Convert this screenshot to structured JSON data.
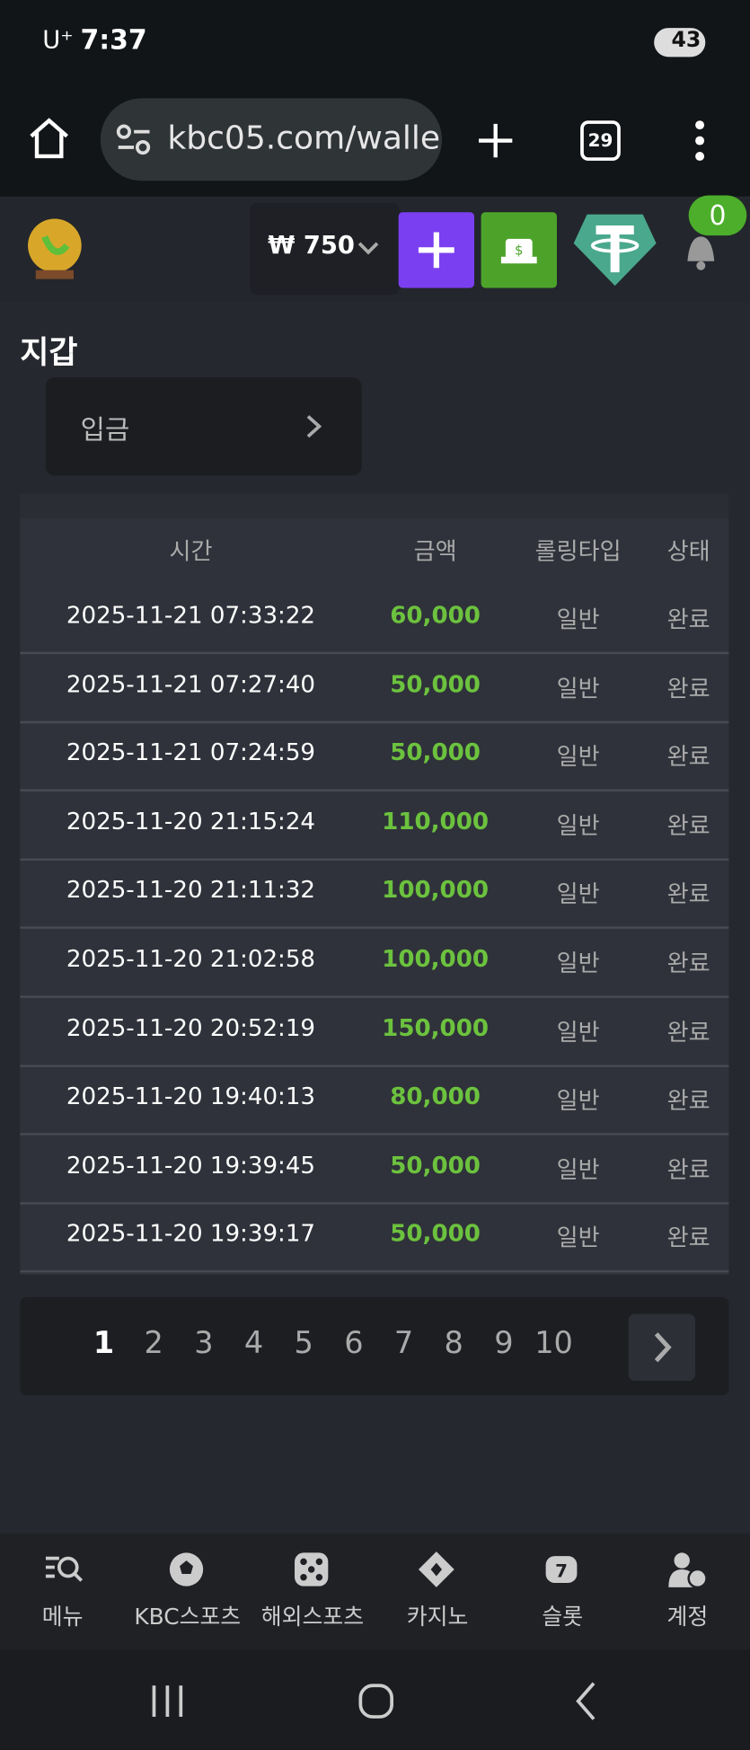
{
  "status_bar": {
    "carrier": "U⁺",
    "time": "7:37",
    "battery": "43"
  },
  "browser": {
    "url": "kbc05.com/walle",
    "tabs": "29"
  },
  "header": {
    "balance": "₩ 750",
    "notifications": "0"
  },
  "page": {
    "title": "지갑",
    "deposit_button": "입금"
  },
  "table": {
    "headers": [
      "시간",
      "금액",
      "롤링타입",
      "상태"
    ],
    "rows": [
      [
        "2025-11-21 07:33:22",
        "60,000",
        "일반",
        "완료"
      ],
      [
        "2025-11-21 07:27:40",
        "50,000",
        "일반",
        "완료"
      ],
      [
        "2025-11-21 07:24:59",
        "50,000",
        "일반",
        "완료"
      ],
      [
        "2025-11-20 21:15:24",
        "110,000",
        "일반",
        "완료"
      ],
      [
        "2025-11-20 21:11:32",
        "100,000",
        "일반",
        "완료"
      ],
      [
        "2025-11-20 21:02:58",
        "100,000",
        "일반",
        "완료"
      ],
      [
        "2025-11-20 20:52:19",
        "150,000",
        "일반",
        "완료"
      ],
      [
        "2025-11-20 19:40:13",
        "80,000",
        "일반",
        "완료"
      ],
      [
        "2025-11-20 19:39:45",
        "50,000",
        "일반",
        "완료"
      ],
      [
        "2025-11-20 19:39:17",
        "50,000",
        "일반",
        "완료"
      ]
    ]
  },
  "pagination": {
    "pages": [
      "1",
      "2",
      "3",
      "4",
      "5",
      "6",
      "7",
      "8",
      "9",
      "10"
    ]
  },
  "bottom_nav": {
    "items": [
      "메뉴",
      "KBC스포츠",
      "해외스포츠",
      "카지노",
      "슬롯",
      "계정"
    ]
  }
}
